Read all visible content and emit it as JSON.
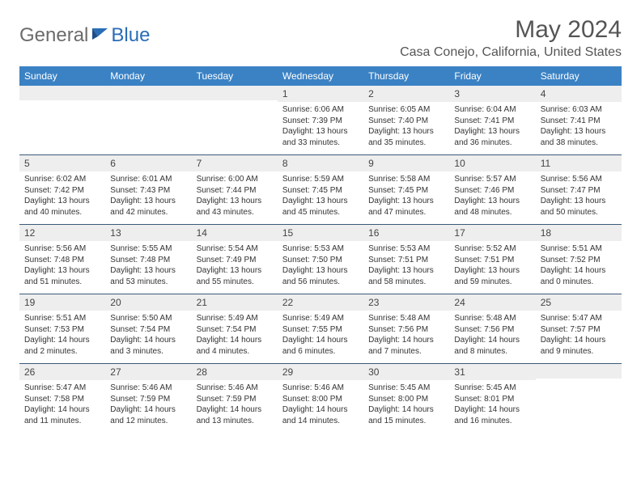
{
  "logo": {
    "text1": "General",
    "text2": "Blue"
  },
  "title": "May 2024",
  "location": "Casa Conejo, California, United States",
  "colors": {
    "header_bg": "#3b82c4",
    "header_text": "#ffffff",
    "daynum_bg": "#eeeeee",
    "rule": "#3b5a7a",
    "logo_gray": "#6b6b6b",
    "logo_blue": "#2a6db5"
  },
  "day_headers": [
    "Sunday",
    "Monday",
    "Tuesday",
    "Wednesday",
    "Thursday",
    "Friday",
    "Saturday"
  ],
  "weeks": [
    [
      {
        "n": "",
        "sr": "",
        "ss": "",
        "dl": ""
      },
      {
        "n": "",
        "sr": "",
        "ss": "",
        "dl": ""
      },
      {
        "n": "",
        "sr": "",
        "ss": "",
        "dl": ""
      },
      {
        "n": "1",
        "sr": "Sunrise: 6:06 AM",
        "ss": "Sunset: 7:39 PM",
        "dl": "Daylight: 13 hours and 33 minutes."
      },
      {
        "n": "2",
        "sr": "Sunrise: 6:05 AM",
        "ss": "Sunset: 7:40 PM",
        "dl": "Daylight: 13 hours and 35 minutes."
      },
      {
        "n": "3",
        "sr": "Sunrise: 6:04 AM",
        "ss": "Sunset: 7:41 PM",
        "dl": "Daylight: 13 hours and 36 minutes."
      },
      {
        "n": "4",
        "sr": "Sunrise: 6:03 AM",
        "ss": "Sunset: 7:41 PM",
        "dl": "Daylight: 13 hours and 38 minutes."
      }
    ],
    [
      {
        "n": "5",
        "sr": "Sunrise: 6:02 AM",
        "ss": "Sunset: 7:42 PM",
        "dl": "Daylight: 13 hours and 40 minutes."
      },
      {
        "n": "6",
        "sr": "Sunrise: 6:01 AM",
        "ss": "Sunset: 7:43 PM",
        "dl": "Daylight: 13 hours and 42 minutes."
      },
      {
        "n": "7",
        "sr": "Sunrise: 6:00 AM",
        "ss": "Sunset: 7:44 PM",
        "dl": "Daylight: 13 hours and 43 minutes."
      },
      {
        "n": "8",
        "sr": "Sunrise: 5:59 AM",
        "ss": "Sunset: 7:45 PM",
        "dl": "Daylight: 13 hours and 45 minutes."
      },
      {
        "n": "9",
        "sr": "Sunrise: 5:58 AM",
        "ss": "Sunset: 7:45 PM",
        "dl": "Daylight: 13 hours and 47 minutes."
      },
      {
        "n": "10",
        "sr": "Sunrise: 5:57 AM",
        "ss": "Sunset: 7:46 PM",
        "dl": "Daylight: 13 hours and 48 minutes."
      },
      {
        "n": "11",
        "sr": "Sunrise: 5:56 AM",
        "ss": "Sunset: 7:47 PM",
        "dl": "Daylight: 13 hours and 50 minutes."
      }
    ],
    [
      {
        "n": "12",
        "sr": "Sunrise: 5:56 AM",
        "ss": "Sunset: 7:48 PM",
        "dl": "Daylight: 13 hours and 51 minutes."
      },
      {
        "n": "13",
        "sr": "Sunrise: 5:55 AM",
        "ss": "Sunset: 7:48 PM",
        "dl": "Daylight: 13 hours and 53 minutes."
      },
      {
        "n": "14",
        "sr": "Sunrise: 5:54 AM",
        "ss": "Sunset: 7:49 PM",
        "dl": "Daylight: 13 hours and 55 minutes."
      },
      {
        "n": "15",
        "sr": "Sunrise: 5:53 AM",
        "ss": "Sunset: 7:50 PM",
        "dl": "Daylight: 13 hours and 56 minutes."
      },
      {
        "n": "16",
        "sr": "Sunrise: 5:53 AM",
        "ss": "Sunset: 7:51 PM",
        "dl": "Daylight: 13 hours and 58 minutes."
      },
      {
        "n": "17",
        "sr": "Sunrise: 5:52 AM",
        "ss": "Sunset: 7:51 PM",
        "dl": "Daylight: 13 hours and 59 minutes."
      },
      {
        "n": "18",
        "sr": "Sunrise: 5:51 AM",
        "ss": "Sunset: 7:52 PM",
        "dl": "Daylight: 14 hours and 0 minutes."
      }
    ],
    [
      {
        "n": "19",
        "sr": "Sunrise: 5:51 AM",
        "ss": "Sunset: 7:53 PM",
        "dl": "Daylight: 14 hours and 2 minutes."
      },
      {
        "n": "20",
        "sr": "Sunrise: 5:50 AM",
        "ss": "Sunset: 7:54 PM",
        "dl": "Daylight: 14 hours and 3 minutes."
      },
      {
        "n": "21",
        "sr": "Sunrise: 5:49 AM",
        "ss": "Sunset: 7:54 PM",
        "dl": "Daylight: 14 hours and 4 minutes."
      },
      {
        "n": "22",
        "sr": "Sunrise: 5:49 AM",
        "ss": "Sunset: 7:55 PM",
        "dl": "Daylight: 14 hours and 6 minutes."
      },
      {
        "n": "23",
        "sr": "Sunrise: 5:48 AM",
        "ss": "Sunset: 7:56 PM",
        "dl": "Daylight: 14 hours and 7 minutes."
      },
      {
        "n": "24",
        "sr": "Sunrise: 5:48 AM",
        "ss": "Sunset: 7:56 PM",
        "dl": "Daylight: 14 hours and 8 minutes."
      },
      {
        "n": "25",
        "sr": "Sunrise: 5:47 AM",
        "ss": "Sunset: 7:57 PM",
        "dl": "Daylight: 14 hours and 9 minutes."
      }
    ],
    [
      {
        "n": "26",
        "sr": "Sunrise: 5:47 AM",
        "ss": "Sunset: 7:58 PM",
        "dl": "Daylight: 14 hours and 11 minutes."
      },
      {
        "n": "27",
        "sr": "Sunrise: 5:46 AM",
        "ss": "Sunset: 7:59 PM",
        "dl": "Daylight: 14 hours and 12 minutes."
      },
      {
        "n": "28",
        "sr": "Sunrise: 5:46 AM",
        "ss": "Sunset: 7:59 PM",
        "dl": "Daylight: 14 hours and 13 minutes."
      },
      {
        "n": "29",
        "sr": "Sunrise: 5:46 AM",
        "ss": "Sunset: 8:00 PM",
        "dl": "Daylight: 14 hours and 14 minutes."
      },
      {
        "n": "30",
        "sr": "Sunrise: 5:45 AM",
        "ss": "Sunset: 8:00 PM",
        "dl": "Daylight: 14 hours and 15 minutes."
      },
      {
        "n": "31",
        "sr": "Sunrise: 5:45 AM",
        "ss": "Sunset: 8:01 PM",
        "dl": "Daylight: 14 hours and 16 minutes."
      },
      {
        "n": "",
        "sr": "",
        "ss": "",
        "dl": ""
      }
    ]
  ]
}
